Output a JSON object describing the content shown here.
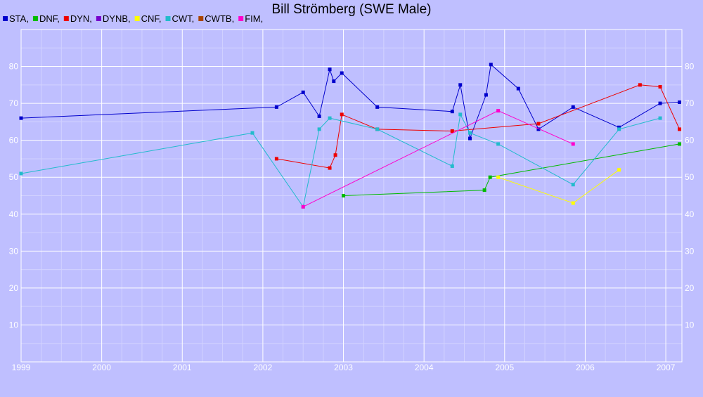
{
  "chart_data": {
    "type": "line",
    "title": "Bill Strömberg (SWE Male)",
    "xlabel": "",
    "ylabel": "",
    "xlim": [
      1999.0,
      2007.2
    ],
    "ylim": [
      0,
      90
    ],
    "x_ticks": [
      "1999",
      "2000",
      "2001",
      "2002",
      "2003",
      "2004",
      "2005",
      "2006",
      "2007"
    ],
    "y_ticks": [
      "10",
      "20",
      "30",
      "40",
      "50",
      "60",
      "70",
      "80"
    ],
    "grid": true,
    "legend_position": "top-left",
    "series": [
      {
        "name": "STA,",
        "color": "#0000cc",
        "points": [
          [
            1999.0,
            66
          ],
          [
            2002.17,
            69
          ],
          [
            2002.5,
            73
          ],
          [
            2002.7,
            66.5
          ],
          [
            2002.83,
            79.2
          ],
          [
            2002.88,
            76
          ],
          [
            2002.98,
            78.2
          ],
          [
            2003.42,
            69
          ],
          [
            2004.35,
            67.8
          ],
          [
            2004.45,
            75
          ],
          [
            2004.57,
            60.5
          ],
          [
            2004.77,
            72.3
          ],
          [
            2004.83,
            80.5
          ],
          [
            2005.17,
            74
          ],
          [
            2005.42,
            63
          ],
          [
            2005.85,
            69
          ],
          [
            2006.42,
            63.5
          ],
          [
            2006.93,
            70
          ],
          [
            2007.17,
            70.3
          ]
        ]
      },
      {
        "name": "DNF,",
        "color": "#00bb00",
        "points": [
          [
            2003.0,
            45
          ],
          [
            2004.75,
            46.5
          ],
          [
            2004.82,
            50
          ],
          [
            2007.17,
            59
          ]
        ]
      },
      {
        "name": "DYN,",
        "color": "#ee0000",
        "points": [
          [
            2002.17,
            55
          ],
          [
            2002.83,
            52.5
          ],
          [
            2002.9,
            56
          ],
          [
            2002.98,
            67
          ],
          [
            2003.42,
            63
          ],
          [
            2004.35,
            62.5
          ],
          [
            2005.42,
            64.5
          ],
          [
            2006.68,
            75
          ],
          [
            2006.93,
            74.5
          ],
          [
            2007.17,
            63
          ]
        ]
      },
      {
        "name": "DYNB,",
        "color": "#7700cc",
        "points": []
      },
      {
        "name": "CNF,",
        "color": "#ffff00",
        "points": [
          [
            2004.92,
            50
          ],
          [
            2005.85,
            43
          ],
          [
            2006.42,
            52
          ]
        ]
      },
      {
        "name": "CWT,",
        "color": "#22bbcc",
        "points": [
          [
            1999.0,
            51
          ],
          [
            2001.87,
            62
          ],
          [
            2002.5,
            42
          ],
          [
            2002.7,
            63
          ],
          [
            2002.83,
            66
          ],
          [
            2003.42,
            63
          ],
          [
            2004.35,
            53
          ],
          [
            2004.45,
            67
          ],
          [
            2004.57,
            62
          ],
          [
            2004.92,
            59
          ],
          [
            2005.85,
            48
          ],
          [
            2006.42,
            63
          ],
          [
            2006.93,
            66
          ]
        ]
      },
      {
        "name": "CWTB,",
        "color": "#aa4400",
        "points": []
      },
      {
        "name": "FIM,",
        "color": "#ff00cc",
        "points": [
          [
            2002.5,
            42
          ],
          [
            2004.92,
            68
          ],
          [
            2005.85,
            59
          ]
        ]
      }
    ]
  }
}
